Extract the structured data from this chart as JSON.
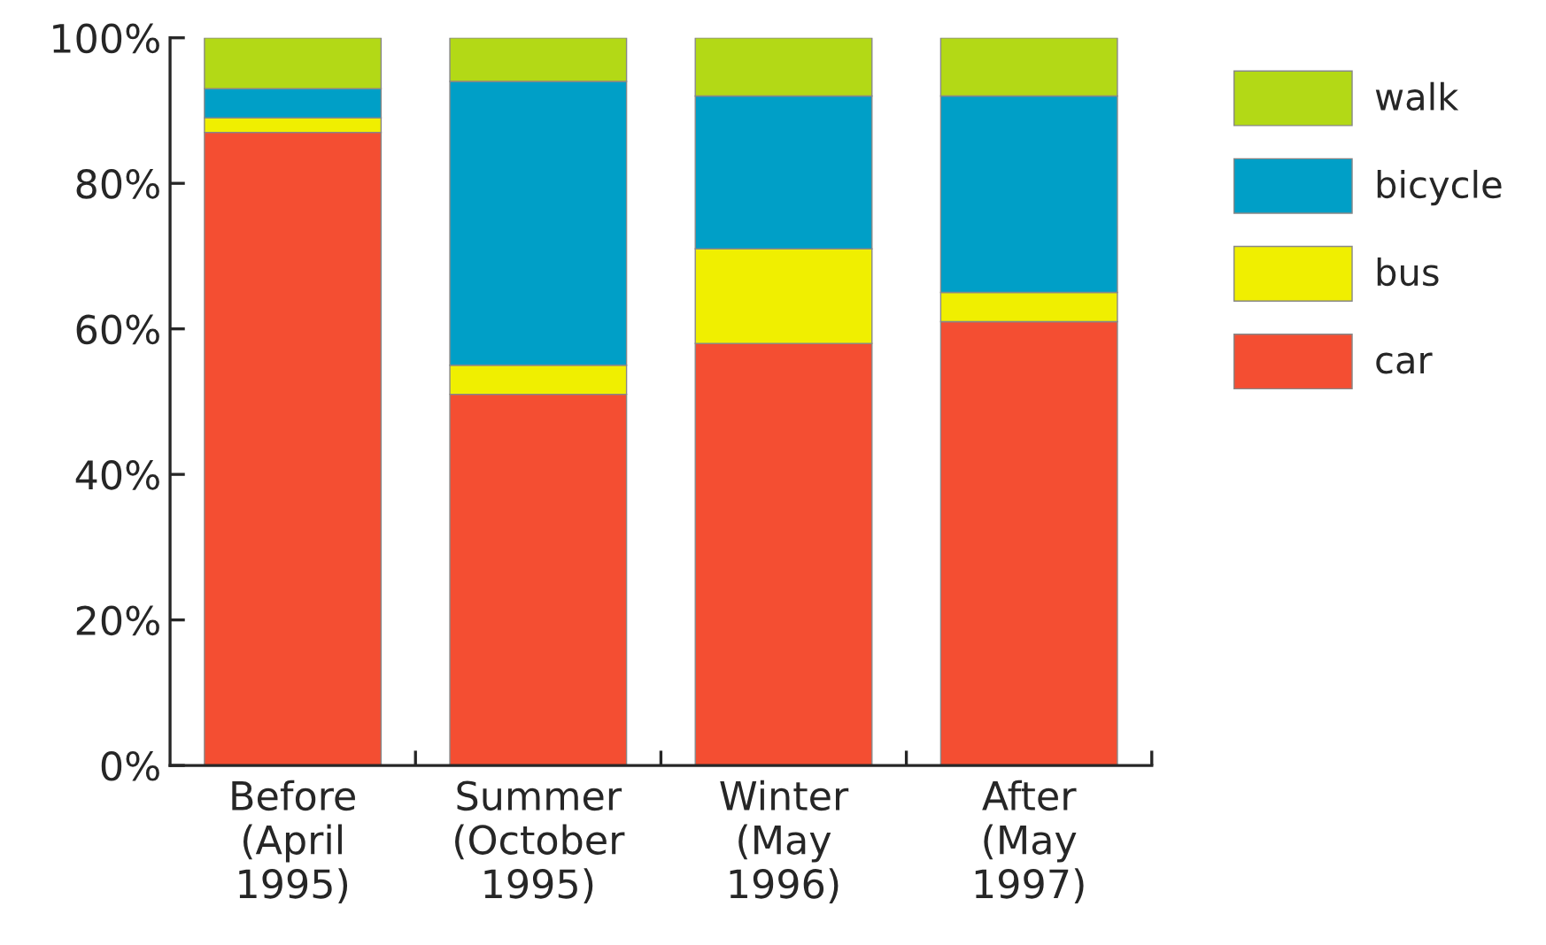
{
  "chart_data": {
    "type": "bar",
    "stacked": true,
    "categories": [
      "Before\n(April\n1995)",
      "Summer\n(October\n1995)",
      "Winter\n(May\n1996)",
      "After\n(May\n1997)"
    ],
    "series": [
      {
        "name": "car",
        "color": "#f44e32",
        "values": [
          87,
          51,
          58,
          61
        ]
      },
      {
        "name": "bus",
        "color": "#f0ef00",
        "values": [
          2,
          4,
          13,
          4
        ]
      },
      {
        "name": "bicycle",
        "color": "#009fc7",
        "values": [
          4,
          39,
          21,
          27
        ]
      },
      {
        "name": "walk",
        "color": "#b3d916",
        "values": [
          7,
          6,
          8,
          8
        ]
      }
    ],
    "ylim": [
      0,
      100
    ],
    "yticks": [
      {
        "value": 0,
        "label": "0%"
      },
      {
        "value": 20,
        "label": "20%"
      },
      {
        "value": 40,
        "label": "40%"
      },
      {
        "value": 60,
        "label": "60%"
      },
      {
        "value": 80,
        "label": "80%"
      },
      {
        "value": 100,
        "label": "100%"
      }
    ],
    "grid": false,
    "legend": "right"
  }
}
